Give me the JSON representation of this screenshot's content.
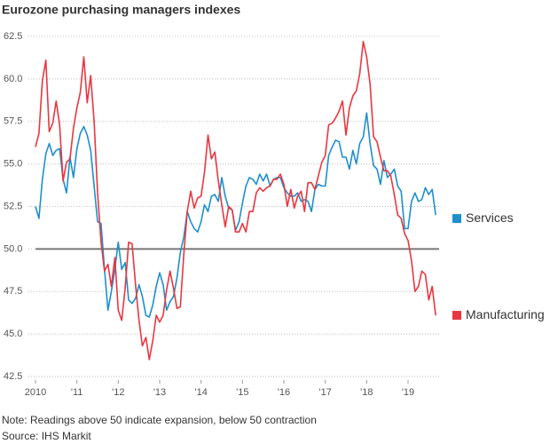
{
  "chart_data": {
    "type": "line",
    "title": "Eurozone purchasing managers indexes",
    "note": "Note: Readings above 50 indicate expansion, below 50 contraction",
    "source": "Source: IHS Markit",
    "xlim": [
      2010,
      2019.75
    ],
    "xticks": [
      {
        "value": 2010,
        "label": "2010"
      },
      {
        "value": 2011,
        "label": "'11"
      },
      {
        "value": 2012,
        "label": "'12"
      },
      {
        "value": 2013,
        "label": "'13"
      },
      {
        "value": 2014,
        "label": "'14"
      },
      {
        "value": 2015,
        "label": "'15"
      },
      {
        "value": 2016,
        "label": "'16"
      },
      {
        "value": 2017,
        "label": "'17"
      },
      {
        "value": 2018,
        "label": "'18"
      },
      {
        "value": 2019,
        "label": "'19"
      }
    ],
    "ylim": [
      42.5,
      62.5
    ],
    "yticks": [
      {
        "value": 42.5,
        "label": "42.5"
      },
      {
        "value": 45,
        "label": "45.0"
      },
      {
        "value": 47.5,
        "label": "47.5"
      },
      {
        "value": 50,
        "label": "50.0"
      },
      {
        "value": 52.5,
        "label": "52.5"
      },
      {
        "value": 55,
        "label": "55.0"
      },
      {
        "value": 57.5,
        "label": "57.5"
      },
      {
        "value": 60,
        "label": "60.0"
      },
      {
        "value": 62.5,
        "label": "62.5"
      }
    ],
    "grid": true,
    "reference_line": 50,
    "x": [
      2010,
      2010.083,
      2010.167,
      2010.25,
      2010.333,
      2010.417,
      2010.5,
      2010.583,
      2010.667,
      2010.75,
      2010.833,
      2010.917,
      2011,
      2011.083,
      2011.167,
      2011.25,
      2011.333,
      2011.417,
      2011.5,
      2011.583,
      2011.667,
      2011.75,
      2011.833,
      2011.917,
      2012,
      2012.083,
      2012.167,
      2012.25,
      2012.333,
      2012.417,
      2012.5,
      2012.583,
      2012.667,
      2012.75,
      2012.833,
      2012.917,
      2013,
      2013.083,
      2013.167,
      2013.25,
      2013.333,
      2013.417,
      2013.5,
      2013.583,
      2013.667,
      2013.75,
      2013.833,
      2013.917,
      2014,
      2014.083,
      2014.167,
      2014.25,
      2014.333,
      2014.417,
      2014.5,
      2014.583,
      2014.667,
      2014.75,
      2014.833,
      2014.917,
      2015,
      2015.083,
      2015.167,
      2015.25,
      2015.333,
      2015.417,
      2015.5,
      2015.583,
      2015.667,
      2015.75,
      2015.833,
      2015.917,
      2016,
      2016.083,
      2016.167,
      2016.25,
      2016.333,
      2016.417,
      2016.5,
      2016.583,
      2016.667,
      2016.75,
      2016.833,
      2016.917,
      2017,
      2017.083,
      2017.167,
      2017.25,
      2017.333,
      2017.417,
      2017.5,
      2017.583,
      2017.667,
      2017.75,
      2017.833,
      2017.917,
      2018,
      2018.083,
      2018.167,
      2018.25,
      2018.333,
      2018.417,
      2018.5,
      2018.583,
      2018.667,
      2018.75,
      2018.833,
      2018.917,
      2019,
      2019.083,
      2019.167,
      2019.25,
      2019.333,
      2019.417,
      2019.5,
      2019.583,
      2019.667
    ],
    "series": [
      {
        "name": "Services",
        "color": "#1e8fcc",
        "values": [
          52.5,
          51.8,
          54.1,
          55.6,
          56.2,
          55.5,
          55.8,
          55.9,
          54.1,
          53.3,
          55.4,
          54.2,
          55.9,
          56.8,
          57.2,
          56.7,
          55.8,
          53.7,
          51.6,
          51.5,
          48.8,
          46.4,
          47.5,
          48.8,
          50.4,
          48.8,
          49.2,
          47.0,
          46.8,
          47.1,
          47.9,
          47.2,
          46.1,
          46.0,
          46.7,
          47.8,
          48.6,
          47.9,
          46.4,
          46.9,
          47.2,
          48.3,
          49.8,
          50.7,
          52.2,
          51.6,
          51.2,
          51.0,
          51.6,
          52.6,
          52.2,
          53.1,
          53.2,
          52.8,
          54.2,
          53.1,
          52.4,
          52.3,
          51.1,
          51.6,
          52.7,
          53.7,
          54.2,
          54.1,
          53.8,
          54.4,
          54.0,
          54.4,
          53.7,
          54.1,
          54.2,
          54.2,
          53.6,
          53.3,
          53.1,
          53.1,
          53.3,
          52.8,
          52.9,
          52.8,
          52.2,
          53.5,
          53.8,
          53.7,
          53.7,
          55.5,
          56.0,
          56.4,
          56.3,
          55.4,
          55.4,
          54.7,
          55.8,
          55.0,
          56.2,
          56.6,
          58.0,
          56.2,
          54.9,
          54.7,
          53.8,
          55.2,
          54.2,
          54.4,
          54.7,
          53.7,
          53.4,
          51.2,
          51.2,
          52.8,
          53.3,
          52.8,
          52.9,
          53.6,
          53.2,
          53.5,
          52.0
        ]
      },
      {
        "name": "Manufacturing",
        "color": "#e8373f",
        "values": [
          56.0,
          56.8,
          59.9,
          61.1,
          56.9,
          57.4,
          58.7,
          57.3,
          54.0,
          55.1,
          55.3,
          57.1,
          58.3,
          59.2,
          61.3,
          58.6,
          60.2,
          57.5,
          53.3,
          50.4,
          48.7,
          49.1,
          47.8,
          49.5,
          46.4,
          45.8,
          47.7,
          50.4,
          50.3,
          47.9,
          45.8,
          44.3,
          44.8,
          43.5,
          44.6,
          46.1,
          45.7,
          46.1,
          47.6,
          48.7,
          47.7,
          46.5,
          46.6,
          49.7,
          52.2,
          53.4,
          52.4,
          53.0,
          53.1,
          54.5,
          56.7,
          55.3,
          55.7,
          54.0,
          52.6,
          51.3,
          52.5,
          52.3,
          51.0,
          51.0,
          51.5,
          51.0,
          52.2,
          52.2,
          53.3,
          53.6,
          53.4,
          53.6,
          53.7,
          54.1,
          54.1,
          54.4,
          53.8,
          52.5,
          53.5,
          52.4,
          53.1,
          53.4,
          52.2,
          53.9,
          53.9,
          53.5,
          54.3,
          55.1,
          55.5,
          57.3,
          57.4,
          57.7,
          58.1,
          58.7,
          56.7,
          58.3,
          59.0,
          59.3,
          60.3,
          62.2,
          61.3,
          59.7,
          56.6,
          56.3,
          55.4,
          54.6,
          54.6,
          54.3,
          53.2,
          52.0,
          51.8,
          50.9,
          50.5,
          49.3,
          47.5,
          47.8,
          48.7,
          48.5,
          47.0,
          47.8,
          46.1
        ]
      }
    ]
  }
}
